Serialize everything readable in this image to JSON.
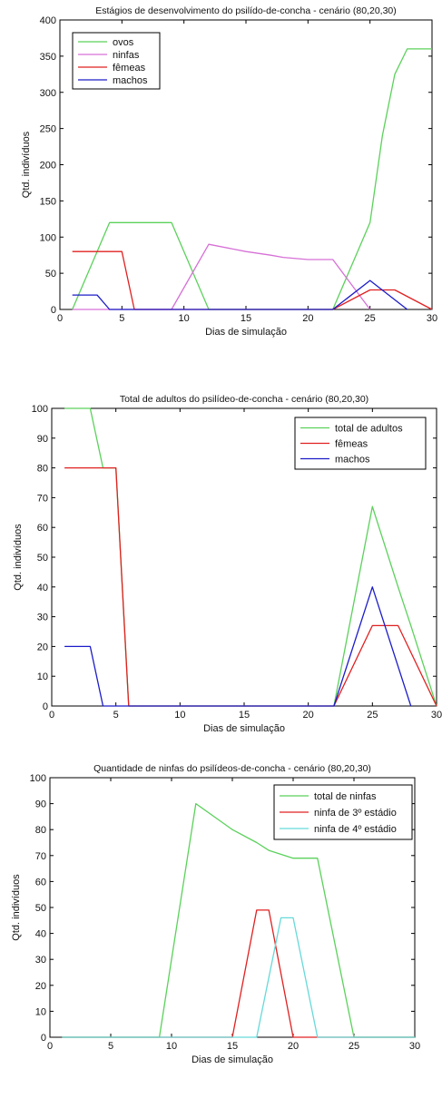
{
  "chart_data": [
    {
      "type": "line",
      "title": "Estágios de desenvolvimento do psilído-de-concha - cenário (80,20,30)",
      "xlabel": "Dias de simulação",
      "ylabel": "Qtd. indivíduos",
      "xlim": [
        0,
        30
      ],
      "ylim": [
        0,
        400
      ],
      "xticks": [
        0,
        5,
        10,
        15,
        20,
        25,
        30
      ],
      "yticks": [
        0,
        50,
        100,
        150,
        200,
        250,
        300,
        350,
        400
      ],
      "grid": false,
      "legend": "top-left",
      "series": [
        {
          "name": "ovos",
          "color": "#5bd15b",
          "x": [
            1,
            4,
            9,
            12,
            22,
            25,
            26,
            27,
            28,
            30
          ],
          "y": [
            0,
            120,
            120,
            0,
            0,
            120,
            240,
            325,
            360,
            360
          ]
        },
        {
          "name": "ninfas",
          "color": "#d670d6",
          "x": [
            1,
            9,
            12,
            15,
            17,
            18,
            20,
            22,
            25
          ],
          "y": [
            0,
            0,
            90,
            80,
            75,
            72,
            69,
            69,
            0
          ]
        },
        {
          "name": "fêmeas",
          "color": "#e02020",
          "x": [
            1,
            5,
            6,
            22,
            25,
            27,
            30
          ],
          "y": [
            80,
            80,
            0,
            0,
            27,
            27,
            0
          ]
        },
        {
          "name": "machos",
          "color": "#1c1cc8",
          "x": [
            1,
            3,
            4,
            22,
            25,
            28
          ],
          "y": [
            20,
            20,
            0,
            0,
            40,
            0
          ]
        }
      ]
    },
    {
      "type": "line",
      "title": "Total de adultos do psilídeo-de-concha - cenário (80,20,30)",
      "xlabel": "Dias de simulação",
      "ylabel": "Qtd. indivíduos",
      "xlim": [
        0,
        30
      ],
      "ylim": [
        0,
        100
      ],
      "xticks": [
        0,
        5,
        10,
        15,
        20,
        25,
        30
      ],
      "yticks": [
        0,
        10,
        20,
        30,
        40,
        50,
        60,
        70,
        80,
        90,
        100
      ],
      "grid": false,
      "legend": "top-right",
      "series": [
        {
          "name": "total de adultos",
          "color": "#5bd15b",
          "x": [
            1,
            3,
            4,
            5,
            6,
            22,
            25,
            27,
            28,
            30
          ],
          "y": [
            100,
            100,
            80,
            80,
            0,
            0,
            67,
            40,
            27,
            0
          ]
        },
        {
          "name": "fêmeas",
          "color": "#e02020",
          "x": [
            1,
            5,
            6,
            22,
            25,
            27,
            30
          ],
          "y": [
            80,
            80,
            0,
            0,
            27,
            27,
            0
          ]
        },
        {
          "name": "machos",
          "color": "#1c1cc8",
          "x": [
            1,
            3,
            4,
            22,
            25,
            28
          ],
          "y": [
            20,
            20,
            0,
            0,
            40,
            0
          ]
        }
      ]
    },
    {
      "type": "line",
      "title": "Quantidade de ninfas do psilídeos-de-concha - cenário (80,20,30)",
      "xlabel": "Dias de simulação",
      "ylabel": "Qtd. indivíduos",
      "xlim": [
        0,
        30
      ],
      "ylim": [
        0,
        100
      ],
      "xticks": [
        0,
        5,
        10,
        15,
        20,
        25,
        30
      ],
      "yticks": [
        0,
        10,
        20,
        30,
        40,
        50,
        60,
        70,
        80,
        90,
        100
      ],
      "grid": false,
      "legend": "top-right",
      "series": [
        {
          "name": "total de ninfas",
          "color": "#5bd15b",
          "x": [
            1,
            9,
            12,
            15,
            17,
            18,
            20,
            22,
            25,
            30
          ],
          "y": [
            0,
            0,
            90,
            80,
            75,
            72,
            69,
            69,
            0,
            0
          ]
        },
        {
          "name": "ninfa de 3º estádio",
          "color": "#e02020",
          "x": [
            1,
            15,
            17,
            18,
            20,
            30
          ],
          "y": [
            0,
            0,
            49,
            49,
            0,
            0
          ]
        },
        {
          "name": "ninfa de 4º estádio",
          "color": "#66d9d9",
          "x": [
            1,
            17,
            19,
            20,
            22,
            30
          ],
          "y": [
            0,
            0,
            46,
            46,
            0,
            0
          ]
        }
      ]
    }
  ]
}
